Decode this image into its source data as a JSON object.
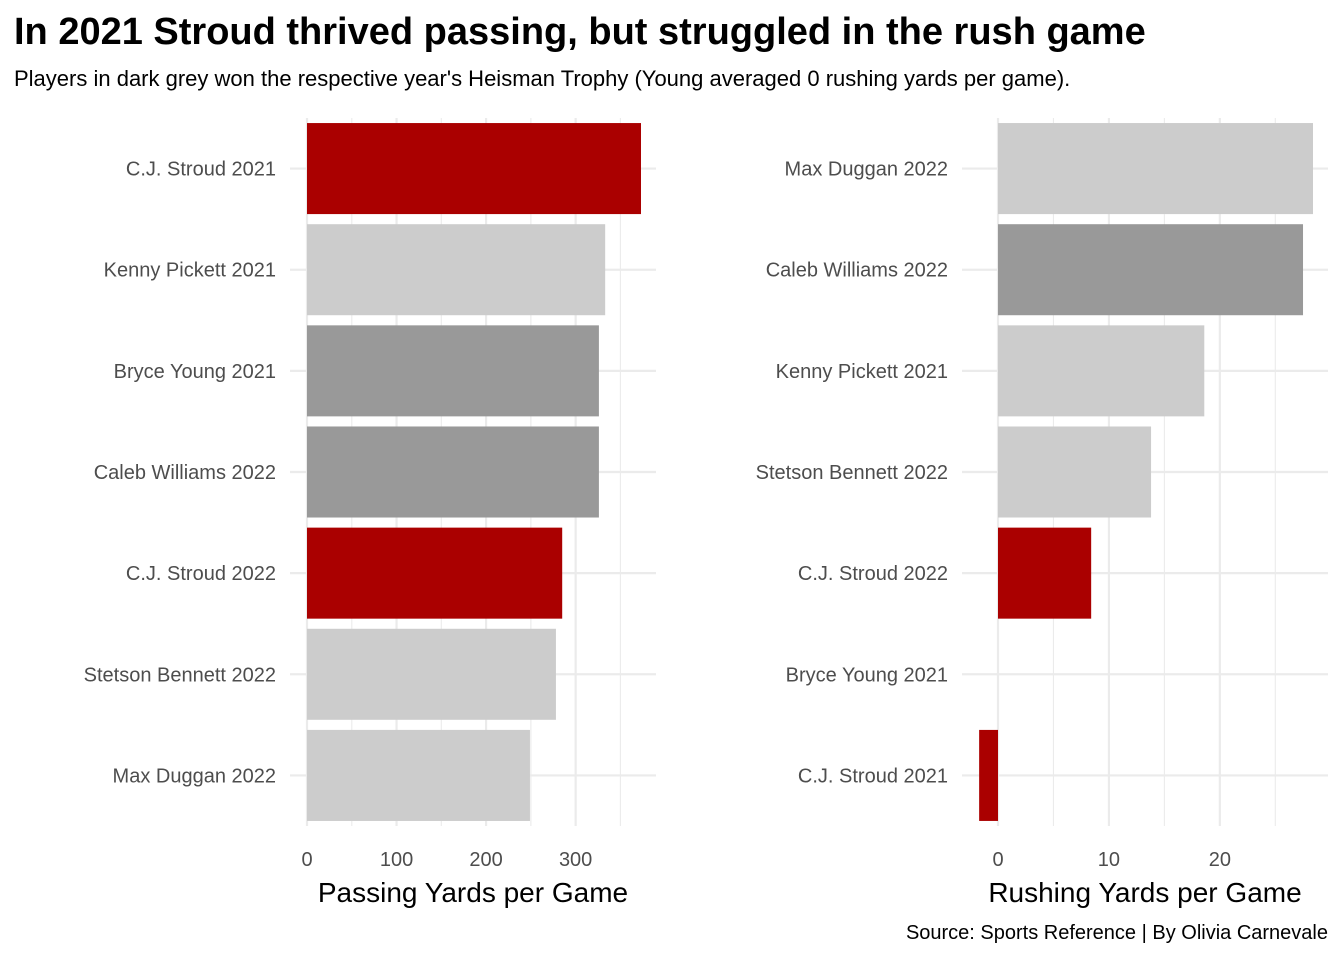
{
  "title": "In 2021 Stroud thrived passing, but struggled in the rush game",
  "subtitle": "Players in dark grey won the respective year's Heisman Trophy (Young averaged 0 rushing yards per game).",
  "caption": "Source: Sports Reference | By Olivia Carnevale",
  "colors": {
    "stroud": "#aa0000",
    "heisman": "#999999",
    "other": "#cccccc",
    "grid": "#ebebeb",
    "tick_text": "#4d4d4d"
  },
  "chart_data": [
    {
      "type": "bar",
      "orientation": "horizontal",
      "xlabel": "Passing Yards per Game",
      "ylabel": "",
      "xlim": [
        0,
        390
      ],
      "xticks": [
        0,
        100,
        200,
        300
      ],
      "grid": true,
      "legend": "none",
      "categories": [
        "C.J. Stroud 2021",
        "Kenny Pickett 2021",
        "Bryce Young 2021",
        "Caleb Williams 2022",
        "C.J. Stroud 2022",
        "Stetson Bennett 2022",
        "Max Duggan 2022"
      ],
      "values": [
        373,
        333,
        326,
        326,
        285,
        278,
        249
      ],
      "groups": [
        "stroud",
        "other",
        "heisman",
        "heisman",
        "stroud",
        "other",
        "other"
      ]
    },
    {
      "type": "bar",
      "orientation": "horizontal",
      "xlabel": "Rushing Yards per Game",
      "ylabel": "",
      "xlim": [
        -1.7,
        28.4
      ],
      "xticks": [
        0,
        10,
        20
      ],
      "grid": true,
      "legend": "none",
      "categories": [
        "Max Duggan 2022",
        "Caleb Williams 2022",
        "Kenny Pickett 2021",
        "Stetson Bennett 2022",
        "C.J. Stroud 2022",
        "Bryce Young 2021",
        "C.J. Stroud 2021"
      ],
      "values": [
        28.4,
        27.5,
        18.6,
        13.8,
        8.4,
        0,
        -1.7
      ],
      "groups": [
        "other",
        "heisman",
        "other",
        "other",
        "stroud",
        "heisman",
        "stroud"
      ]
    }
  ]
}
